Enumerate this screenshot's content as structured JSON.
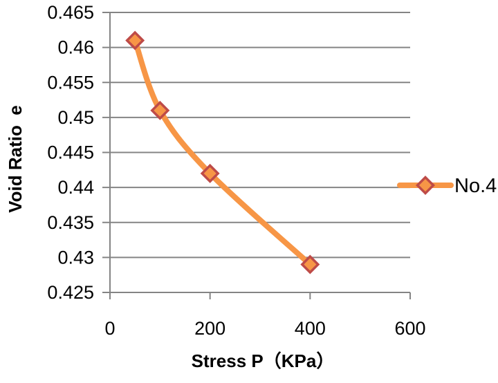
{
  "chart_data": {
    "type": "line",
    "title": "",
    "xlabel": "Stress P（KPa）",
    "ylabel": "Void Ratio  e",
    "xlim": [
      0,
      600
    ],
    "ylim": [
      0.425,
      0.465
    ],
    "x_ticks": [
      0,
      200,
      400,
      600
    ],
    "x_tick_labels": [
      "0",
      "200",
      "400",
      "600"
    ],
    "y_ticks": [
      0.465,
      0.46,
      0.455,
      0.45,
      0.445,
      0.44,
      0.435,
      0.43,
      0.425
    ],
    "y_tick_labels": [
      "0.465",
      "0.46",
      "0.455",
      "0.45",
      "0.445",
      "0.44",
      "0.435",
      "0.43",
      "0.425"
    ],
    "grid": "horizontal",
    "legend_position": "right-middle",
    "series": [
      {
        "name": "No.4",
        "x": [
          50,
          100,
          200,
          400
        ],
        "y": [
          0.461,
          0.451,
          0.442,
          0.429
        ],
        "smooth": true,
        "marker": "diamond",
        "color": "#F79646",
        "marker_fill": "#F79646",
        "marker_border_color": "#BE4B48"
      }
    ]
  },
  "colors": {
    "background": "#FFFFFF",
    "gridline": "#848484",
    "axis": "#848484",
    "text": "#000000"
  }
}
